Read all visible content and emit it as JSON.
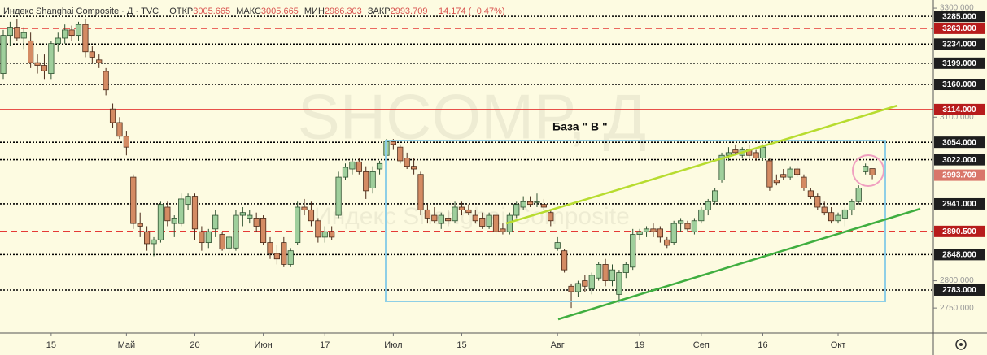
{
  "chart_data": {
    "type": "candlestick",
    "header": {
      "symbol": "Индекс Shanghai Composite · Д · TVC",
      "open_label": "ОТКР",
      "high_label": "МАКС",
      "low_label": "МИН",
      "close_label": "ЗАКР",
      "change": "−14.174 (−0.47%)"
    },
    "watermark": "SHCOMP, Д",
    "watermark_subtitle": "Индекс Shanghai Composite",
    "annotation": "База \" В \"",
    "categories": [
      null,
      null,
      null,
      null,
      null,
      null,
      null,
      "15",
      null,
      null,
      null,
      null,
      null,
      null,
      null,
      null,
      null,
      null,
      "Май",
      null,
      null,
      null,
      null,
      null,
      null,
      null,
      null,
      null,
      "20",
      null,
      null,
      null,
      null,
      null,
      null,
      null,
      null,
      null,
      "Июн",
      null,
      null,
      null,
      null,
      null,
      null,
      null,
      null,
      "17",
      null,
      null,
      null,
      null,
      null,
      null,
      null,
      null,
      null,
      "Июл",
      null,
      null,
      null,
      null,
      null,
      null,
      null,
      null,
      null,
      "15",
      null,
      null,
      null,
      null,
      null,
      null,
      null,
      null,
      null,
      null,
      null,
      null,
      null,
      "Авг",
      null,
      null,
      null,
      null,
      null,
      null,
      null,
      null,
      null,
      null,
      null,
      "19",
      null,
      null,
      null,
      null,
      null,
      null,
      null,
      null,
      "Сеп",
      null,
      null,
      null,
      null,
      null,
      null,
      null,
      null,
      "16",
      null,
      null,
      null,
      null,
      null,
      null,
      null,
      null,
      null,
      null,
      "Окт",
      null,
      null,
      null,
      null,
      null
    ],
    "open": [
      3180,
      3250,
      3265,
      3245,
      3240,
      3200,
      3195,
      3180,
      3235,
      3245,
      3260,
      3250,
      3270,
      3220,
      3205,
      3184,
      3115,
      3090,
      3065,
      2990,
      2905,
      2890,
      2868,
      2875,
      2935,
      2905,
      2905,
      2940,
      2955,
      2890,
      2870,
      2895,
      2885,
      2860,
      2860,
      2920,
      2915,
      2915,
      2915,
      2870,
      2850,
      2870,
      2830,
      2870,
      2935,
      2930,
      2910,
      2880,
      2890,
      2920,
      2990,
      3005,
      3018,
      3000,
      2970,
      3005,
      3030,
      3055,
      3045,
      3025,
      3010,
      2995,
      2930,
      2920,
      2905,
      2915,
      2910,
      2935,
      2930,
      2920,
      2915,
      2900,
      2920,
      2895,
      2890,
      2920,
      2935,
      2945,
      2945,
      2940,
      2925,
      2860,
      2855,
      2790,
      2780,
      2800,
      2785,
      2805,
      2830,
      2800,
      2775,
      2815,
      2825,
      2885,
      2890,
      2895,
      2895,
      2875,
      2870,
      2905,
      2905,
      2890,
      2910,
      2930,
      2945,
      2985,
      3030,
      3040,
      3030,
      3040,
      3035,
      3025,
      3020,
      2985,
      2995,
      2990,
      3005,
      2990,
      2965,
      2955,
      2935,
      2925,
      2910,
      2915,
      2930,
      2945,
      3000,
      3005.665
    ],
    "high": [
      3260,
      3275,
      3280,
      3265,
      3255,
      3215,
      3215,
      3240,
      3255,
      3270,
      3268,
      3275,
      3280,
      3230,
      3215,
      3190,
      3125,
      3100,
      3075,
      2995,
      2925,
      2900,
      2880,
      2945,
      2945,
      2920,
      2960,
      2960,
      2960,
      2900,
      2895,
      2930,
      2890,
      2885,
      2930,
      2935,
      2930,
      2925,
      2920,
      2880,
      2865,
      2880,
      2860,
      2945,
      2950,
      2945,
      2915,
      2900,
      2900,
      3000,
      3015,
      3025,
      3025,
      3010,
      3010,
      3020,
      3060,
      3060,
      3050,
      3035,
      3025,
      3000,
      2940,
      2935,
      2925,
      2930,
      2945,
      2945,
      2940,
      2930,
      2925,
      2925,
      2925,
      2905,
      2925,
      2945,
      2955,
      2955,
      2960,
      2950,
      2930,
      2880,
      2858,
      2795,
      2800,
      2810,
      2815,
      2835,
      2840,
      2830,
      2820,
      2835,
      2895,
      2895,
      2900,
      2905,
      2900,
      2880,
      2910,
      2915,
      2910,
      2915,
      2935,
      2950,
      2970,
      3035,
      3045,
      3050,
      3045,
      3050,
      3040,
      3050,
      3025,
      2995,
      3005,
      3010,
      3010,
      2995,
      2970,
      2960,
      2945,
      2935,
      2925,
      2935,
      2950,
      2975,
      3015,
      3005.665
    ],
    "low": [
      3170,
      3230,
      3240,
      3225,
      3190,
      3180,
      3170,
      3170,
      3220,
      3235,
      3240,
      3240,
      3210,
      3200,
      3190,
      3140,
      3080,
      3060,
      3030,
      2895,
      2880,
      2855,
      2845,
      2870,
      2900,
      2880,
      2900,
      2930,
      2875,
      2855,
      2860,
      2880,
      2855,
      2850,
      2855,
      2900,
      2905,
      2890,
      2865,
      2840,
      2830,
      2825,
      2825,
      2865,
      2920,
      2900,
      2870,
      2870,
      2875,
      2915,
      2985,
      2995,
      2995,
      2950,
      2960,
      2995,
      3025,
      3040,
      3015,
      3005,
      2995,
      2920,
      2905,
      2905,
      2895,
      2900,
      2905,
      2920,
      2920,
      2905,
      2895,
      2895,
      2885,
      2885,
      2885,
      2915,
      2930,
      2935,
      2935,
      2930,
      2900,
      2855,
      2815,
      2750,
      2770,
      2780,
      2775,
      2800,
      2790,
      2790,
      2760,
      2805,
      2820,
      2875,
      2880,
      2880,
      2870,
      2860,
      2865,
      2890,
      2890,
      2885,
      2905,
      2920,
      2940,
      2980,
      3020,
      3030,
      3025,
      3025,
      3020,
      3020,
      2965,
      2975,
      2985,
      2985,
      2990,
      2965,
      2950,
      2930,
      2920,
      2905,
      2905,
      2900,
      2920,
      2940,
      2995,
      2986.303
    ],
    "close": [
      3250,
      3265,
      3245,
      3255,
      3200,
      3195,
      3185,
      3235,
      3245,
      3260,
      3250,
      3270,
      3220,
      3210,
      3200,
      3150,
      3090,
      3065,
      3045,
      2905,
      2900,
      2868,
      2875,
      2940,
      2910,
      2915,
      2950,
      2955,
      2895,
      2870,
      2890,
      2920,
      2858,
      2880,
      2920,
      2925,
      2920,
      2900,
      2870,
      2850,
      2840,
      2830,
      2855,
      2935,
      2930,
      2910,
      2880,
      2890,
      2880,
      2990,
      3008,
      3018,
      3000,
      2965,
      3000,
      3015,
      3055,
      3050,
      3020,
      3010,
      3005,
      2930,
      2915,
      2910,
      2920,
      2910,
      2935,
      2930,
      2925,
      2910,
      2900,
      2920,
      2890,
      2890,
      2920,
      2940,
      2945,
      2940,
      2945,
      2935,
      2910,
      2870,
      2820,
      2780,
      2795,
      2790,
      2810,
      2830,
      2800,
      2820,
      2815,
      2830,
      2885,
      2890,
      2895,
      2890,
      2880,
      2865,
      2905,
      2910,
      2895,
      2910,
      2930,
      2945,
      2965,
      3030,
      3035,
      3035,
      3040,
      3030,
      3025,
      3045,
      2972,
      2980,
      2990,
      3005,
      2995,
      2970,
      2955,
      2935,
      2925,
      2910,
      2920,
      2930,
      2945,
      2970,
      3010,
      2993.709
    ],
    "up_color": "#9fcf9c",
    "down_color": "#d48b63",
    "last_price_color": "#d9766a",
    "ylim": [
      2704,
      3315
    ],
    "yticks": [
      {
        "value": 2750,
        "label": "2750.000"
      },
      {
        "value": 2800,
        "label": "2800.000"
      },
      {
        "value": 3100,
        "label": "3100.000"
      },
      {
        "value": 3300,
        "label": "3300.000"
      }
    ],
    "levels": [
      {
        "value": 3285,
        "label": "3285.000",
        "color": "#000000",
        "style": "dotted"
      },
      {
        "value": 3263,
        "label": "3263.000",
        "color": "#e53935",
        "style": "dashed"
      },
      {
        "value": 3234,
        "label": "3234.000",
        "color": "#000000",
        "style": "dotted"
      },
      {
        "value": 3199,
        "label": "3199.000",
        "color": "#000000",
        "style": "dotted"
      },
      {
        "value": 3160,
        "label": "3160.000",
        "color": "#000000",
        "style": "dotted"
      },
      {
        "value": 3114,
        "label": "3114.000",
        "color": "#e53935",
        "style": "solid"
      },
      {
        "value": 3054,
        "label": "3054.000",
        "color": "#000000",
        "style": "dotted"
      },
      {
        "value": 3022,
        "label": "3022.000",
        "color": "#000000",
        "style": "dotted"
      },
      {
        "value": 2941,
        "label": "2941.000",
        "color": "#000000",
        "style": "dotted"
      },
      {
        "value": 2890.5,
        "label": "2890.500",
        "color": "#e53935",
        "style": "dashed"
      },
      {
        "value": 2848,
        "label": "2848.000",
        "color": "#000000",
        "style": "dotted"
      },
      {
        "value": 2783,
        "label": "2783.000",
        "color": "#000000",
        "style": "dotted"
      }
    ]
  }
}
